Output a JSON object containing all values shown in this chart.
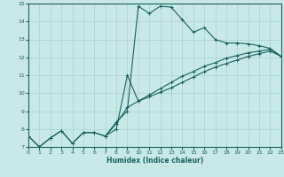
{
  "xlabel": "Humidex (Indice chaleur)",
  "bg_color": "#c8e8e8",
  "grid_color": "#a8d0d0",
  "line_color": "#1a6060",
  "xlim": [
    0,
    23
  ],
  "ylim": [
    7,
    15
  ],
  "xticks": [
    0,
    1,
    2,
    3,
    4,
    5,
    6,
    7,
    8,
    9,
    10,
    11,
    12,
    13,
    14,
    15,
    16,
    17,
    18,
    19,
    20,
    21,
    22,
    23
  ],
  "yticks": [
    7,
    8,
    9,
    10,
    11,
    12,
    13,
    14,
    15
  ],
  "line1_x": [
    0,
    1,
    2,
    3,
    4,
    5,
    6,
    7,
    8,
    9,
    10,
    11,
    12,
    13,
    14,
    15,
    16,
    17,
    18,
    19,
    20,
    21,
    22,
    23
  ],
  "line1_y": [
    7.6,
    7.0,
    7.5,
    7.9,
    7.2,
    7.8,
    7.8,
    7.6,
    8.4,
    9.0,
    14.85,
    14.45,
    14.85,
    14.8,
    14.1,
    13.4,
    13.65,
    13.0,
    12.8,
    12.8,
    12.75,
    12.65,
    12.5,
    12.05
  ],
  "line2_x": [
    0,
    1,
    2,
    3,
    4,
    5,
    6,
    7,
    8,
    9,
    10,
    11,
    12,
    13,
    14,
    15,
    16,
    17,
    18,
    19,
    20,
    21,
    22,
    23
  ],
  "line2_y": [
    7.6,
    7.0,
    7.5,
    7.9,
    7.2,
    7.8,
    7.8,
    7.6,
    8.3,
    9.2,
    9.55,
    9.9,
    10.25,
    10.6,
    10.95,
    11.2,
    11.5,
    11.7,
    11.95,
    12.1,
    12.25,
    12.35,
    12.45,
    12.05
  ],
  "line3_x": [
    7,
    8,
    9,
    10,
    11,
    12,
    13,
    14,
    15,
    16,
    17,
    18,
    19,
    20,
    21,
    22,
    23
  ],
  "line3_y": [
    7.6,
    8.0,
    11.0,
    9.55,
    9.8,
    10.05,
    10.3,
    10.6,
    10.9,
    11.2,
    11.45,
    11.65,
    11.85,
    12.05,
    12.2,
    12.35,
    12.05
  ]
}
